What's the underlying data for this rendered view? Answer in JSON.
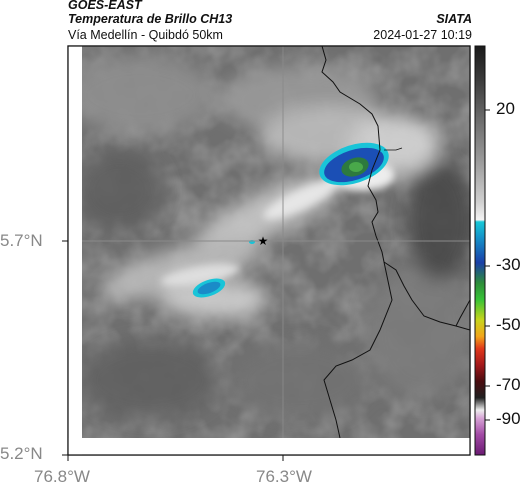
{
  "header": {
    "satellite": "GOES-EAST",
    "product": "Temperatura de Brillo CH13",
    "region": "Vía Medellín - Quibdó 50km",
    "agency": "SIATA",
    "timestamp": "2024-01-27 10:19"
  },
  "axes": {
    "lat_labels": [
      "5.7°N",
      "5.2°N"
    ],
    "lon_labels": [
      "76.8°W",
      "76.3°W"
    ]
  },
  "colorbar": {
    "labels": [
      "20",
      "-30",
      "-50",
      "-70",
      "-90"
    ]
  },
  "marker": {
    "symbol": "★",
    "name": "reference-point"
  },
  "colors": {
    "cloud_cold_blue": "#1b4fb5",
    "cloud_cyan": "#19c4d8",
    "cloud_green": "#3c9a42",
    "border_line": "#111111",
    "grid_line": "#8a8a8a"
  }
}
